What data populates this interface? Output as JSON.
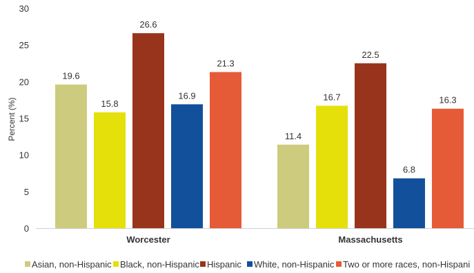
{
  "chart_data": {
    "type": "bar",
    "title": "",
    "xlabel": "",
    "ylabel": "Percent (%)",
    "ylim": [
      0,
      30
    ],
    "yticks": [
      0,
      5,
      10,
      15,
      20,
      25,
      30
    ],
    "grid": false,
    "legend_position": "bottom",
    "categories": [
      "Worcester",
      "Massachusetts"
    ],
    "series": [
      {
        "name": "Asian, non-Hispanic",
        "color": "#CDCB7E",
        "values": [
          19.6,
          11.4
        ]
      },
      {
        "name": "Black, non-Hispanic",
        "color": "#E5E009",
        "values": [
          15.8,
          16.7
        ]
      },
      {
        "name": "Hispanic",
        "color": "#98341C",
        "values": [
          26.6,
          22.5
        ]
      },
      {
        "name": "White, non-Hispanic",
        "color": "#13509C",
        "values": [
          16.9,
          6.8
        ]
      },
      {
        "name": "Two or more races, non-Hispani",
        "color": "#E55B37",
        "values": [
          21.3,
          16.3
        ]
      }
    ]
  }
}
